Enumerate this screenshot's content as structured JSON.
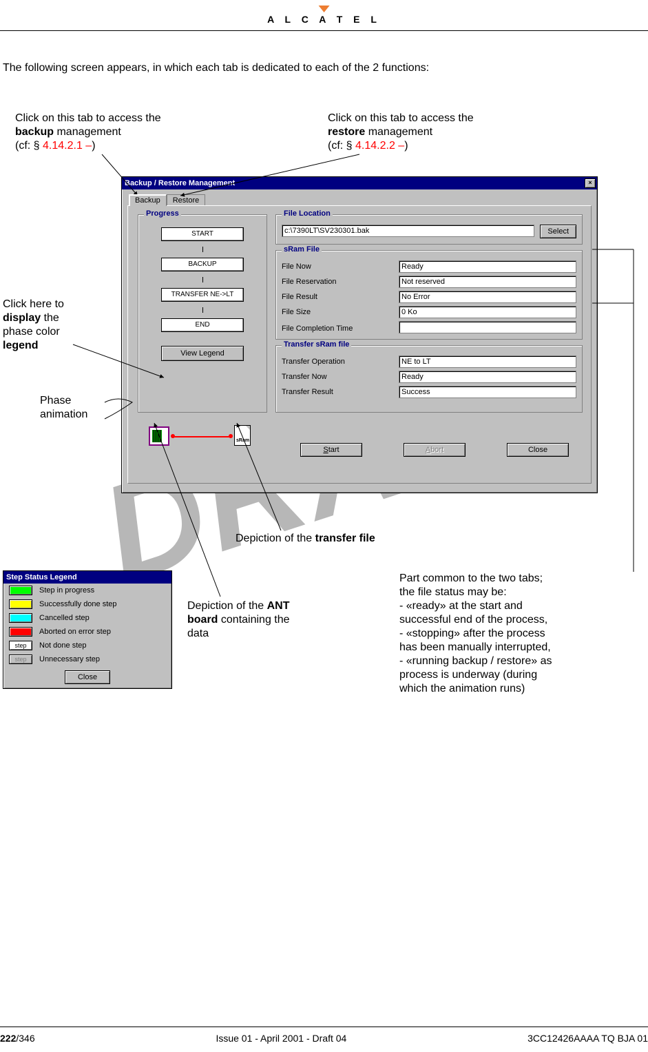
{
  "logo": "A L C A T E L",
  "intro": "The following screen appears, in which each tab is dedicated to each of the 2 functions:",
  "callout_backup": {
    "l1": "Click on this tab to access the",
    "l2_pre": "backup",
    "l2_post": " management",
    "l3_pre": "(cf: § ",
    "l3_ref": "4.14.2.1 –",
    "l3_post": ")"
  },
  "callout_restore": {
    "l1": "Click on this tab to access the",
    "l2_pre": "restore",
    "l2_post": " management",
    "l3_pre": "(cf: § ",
    "l3_ref": "4.14.2.2 –",
    "l3_post": ")"
  },
  "callout_legend": {
    "l1": "Click here to",
    "l2_pre": "display",
    "l2_post": " the",
    "l3": "phase color",
    "l4": "legend"
  },
  "callout_phase": "Phase\nanimation",
  "callout_transfer": {
    "pre": "Depiction of the ",
    "b": "transfer file"
  },
  "callout_ant": {
    "l1_pre": "Depiction of the ",
    "l1_b": "ANT",
    "l2_b": "board",
    "l2_post": " containing the",
    "l3": "data"
  },
  "callout_common": {
    "l1": "Part common to the two tabs;",
    "l2": "the file status may be:",
    "l3": "- «ready» at the start and",
    "l4": "successful end of the process,",
    "l5": "- «stopping» after the process",
    "l6": "has been manually interrupted,",
    "l7": "- «running backup / restore» as",
    "l8": "process is underway (during",
    "l9": "which the animation runs)"
  },
  "dialog": {
    "title": "Backup / Restore Management",
    "tabs": {
      "backup": "Backup",
      "restore": "Restore"
    },
    "progress": {
      "title": "Progress",
      "steps": [
        "START",
        "BACKUP",
        "TRANSFER NE->LT",
        "END"
      ],
      "view_legend": "View Legend"
    },
    "fileloc": {
      "title": "File Location",
      "value": "c:\\7390LT\\SV230301.bak",
      "select": "Select"
    },
    "sram": {
      "title": "sRam File",
      "rows": {
        "file_now": {
          "lbl": "File Now",
          "val": "Ready"
        },
        "file_reservation": {
          "lbl": "File Reservation",
          "val": "Not reserved"
        },
        "file_result": {
          "lbl": "File Result",
          "val": "No Error"
        },
        "file_size": {
          "lbl": "File Size",
          "val": "0 Ko"
        },
        "file_completion": {
          "lbl": "File Completion Time",
          "val": ""
        }
      }
    },
    "transfer": {
      "title": "Transfer sRam file",
      "rows": {
        "op": {
          "lbl": "Transfer Operation",
          "val": "NE to LT"
        },
        "now": {
          "lbl": "Transfer Now",
          "val": "Ready"
        },
        "result": {
          "lbl": "Transfer Result",
          "val": "Success"
        }
      }
    },
    "actions": {
      "start": "Start",
      "abort": "Abort",
      "close": "Close"
    },
    "sram_icon_label": "sRam"
  },
  "legend": {
    "title": "Step Status Legend",
    "rows": [
      {
        "color": "#00ff00",
        "text": "Step in progress"
      },
      {
        "color": "#ffff00",
        "text": "Successfully done step"
      },
      {
        "color": "#00ffff",
        "text": "Cancelled step"
      },
      {
        "color": "#ff0000",
        "text": "Aborted on error step"
      },
      {
        "color": "#ffffff",
        "text": "Not done step",
        "label": "step"
      },
      {
        "color": "#c0c0c0",
        "text": "Unnecessary step",
        "label": "step",
        "greyed": true
      }
    ],
    "close": "Close"
  },
  "footer": {
    "page_bold": "222",
    "page_rest": "/346",
    "center": "Issue 01 - April 2001 - Draft 04",
    "right": "3CC12426AAAA TQ BJA 01"
  },
  "draft": "DRAFT"
}
